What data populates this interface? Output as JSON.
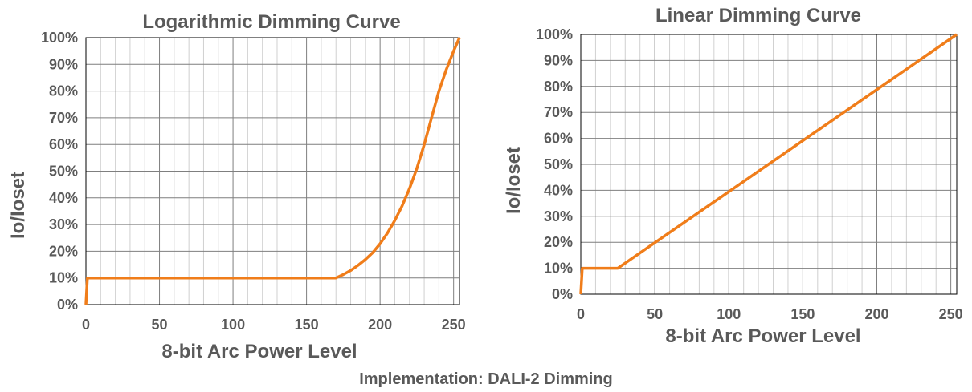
{
  "caption": {
    "label": "Implementation",
    "separator": ": ",
    "value": "DALI-2 Dimming"
  },
  "colors": {
    "series": "#f07d1a",
    "text": "#595959",
    "grid_major": "#7f7f7f",
    "grid_minor": "#d0d0d0"
  },
  "chart_data": [
    {
      "type": "line",
      "title": "Logarithmic Dimming Curve",
      "xlabel": "8-bit Arc Power Level",
      "ylabel": "Io/Ioset",
      "xlim": [
        0,
        254
      ],
      "ylim": [
        0,
        100
      ],
      "x_ticks": [
        0,
        50,
        100,
        150,
        200,
        250
      ],
      "y_ticks": [
        "0%",
        "10%",
        "20%",
        "30%",
        "40%",
        "50%",
        "60%",
        "70%",
        "80%",
        "90%",
        "100%"
      ],
      "grid": true,
      "series": [
        {
          "x": [
            0,
            1,
            170,
            175,
            180,
            185,
            190,
            195,
            200,
            205,
            210,
            215,
            220,
            225,
            230,
            235,
            240,
            245,
            250,
            254
          ],
          "y": [
            0,
            10,
            10,
            11.3,
            12.8,
            14.7,
            16.9,
            19.5,
            22.8,
            26.8,
            31.5,
            37.0,
            43.5,
            51.0,
            60.0,
            70.0,
            80.0,
            88.0,
            95.0,
            100
          ]
        }
      ]
    },
    {
      "type": "line",
      "title": "Linear Dimming Curve",
      "xlabel": "8-bit Arc Power Level",
      "ylabel": "Io/Ioset",
      "xlim": [
        0,
        254
      ],
      "ylim": [
        0,
        100
      ],
      "x_ticks": [
        0,
        50,
        100,
        150,
        200,
        250
      ],
      "y_ticks": [
        "0%",
        "10%",
        "20%",
        "30%",
        "40%",
        "50%",
        "60%",
        "70%",
        "80%",
        "90%",
        "100%"
      ],
      "grid": true,
      "series": [
        {
          "x": [
            0,
            1,
            25,
            254
          ],
          "y": [
            0,
            10,
            10,
            100
          ]
        }
      ]
    }
  ]
}
